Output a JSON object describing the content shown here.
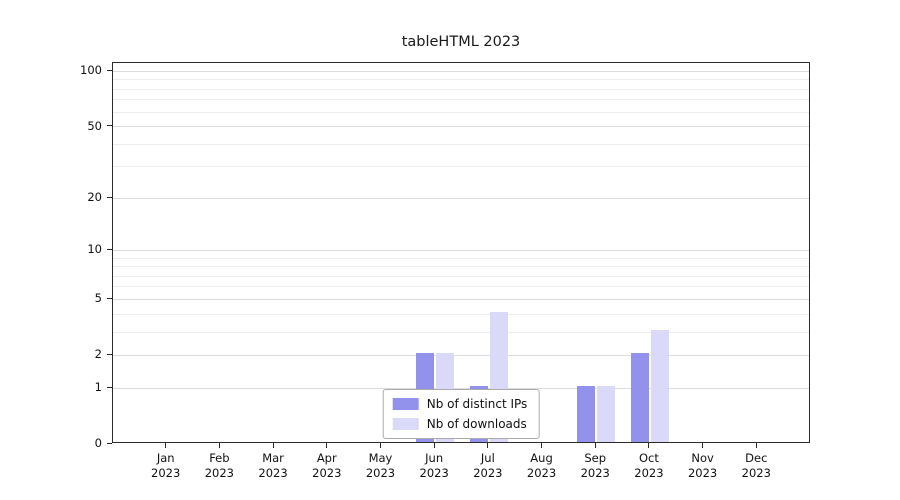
{
  "chart_data": {
    "type": "bar",
    "title": "tableHTML 2023",
    "x_tick_year": "2023",
    "categories": [
      "Jan",
      "Feb",
      "Mar",
      "Apr",
      "May",
      "Jun",
      "Jul",
      "Aug",
      "Sep",
      "Oct",
      "Nov",
      "Dec"
    ],
    "series": [
      {
        "name": "Nb of distinct IPs",
        "color": "#9292ec",
        "values": [
          0,
          0,
          0,
          0,
          0,
          2,
          1,
          0,
          1,
          2,
          0,
          0
        ]
      },
      {
        "name": "Nb of downloads",
        "color": "#dadaf8",
        "values": [
          0,
          0,
          0,
          0,
          0,
          2,
          4,
          0,
          1,
          3,
          0,
          0
        ]
      }
    ],
    "y_axis": {
      "scale": "log1p",
      "ticks": [
        0,
        1,
        2,
        5,
        10,
        20,
        50,
        100
      ],
      "minor_gridlines": [
        3,
        4,
        6,
        7,
        8,
        9,
        30,
        40,
        60,
        70,
        80,
        90
      ],
      "top_value": 111
    },
    "legend": {
      "position": "bottom-center",
      "entries": [
        "Nb of distinct IPs",
        "Nb of downloads"
      ]
    },
    "grid": "horizontal"
  }
}
